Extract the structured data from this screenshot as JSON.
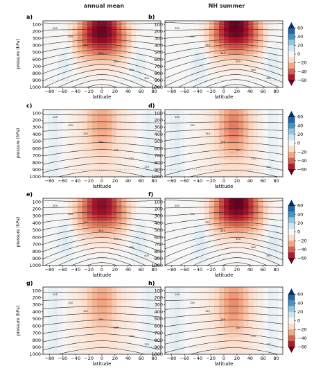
{
  "figure": {
    "column_titles": [
      "annual mean",
      "NH summer"
    ]
  },
  "colorbar": {
    "ticks": [
      60,
      40,
      20,
      0,
      -20,
      -40,
      -60
    ],
    "colors_top_to_bottom": [
      "#053061",
      "#2166ac",
      "#4393c3",
      "#92c5de",
      "#d1e5f0",
      "#f7f7f7",
      "#fddbc7",
      "#f4a582",
      "#d6604d",
      "#b2182b",
      "#67001f"
    ]
  },
  "chart_data": [
    {
      "type": "heatmap",
      "panel_label": "a)",
      "xlabel": "latitude",
      "ylabel": "pressure (hPa)",
      "x_ticks": [
        -80,
        -60,
        -40,
        -20,
        0,
        20,
        40,
        60,
        80
      ],
      "y_ticks": [
        100,
        200,
        300,
        400,
        500,
        600,
        700,
        800,
        900,
        1000
      ],
      "xlim": [
        -90,
        90
      ],
      "ylim": [
        1000,
        50
      ],
      "zlim": [
        -60,
        60
      ],
      "field": {
        "kind": "jet",
        "amplitude": -60,
        "center_lat": 0,
        "peak_pressure": 200
      },
      "contour_labels": [
        "300",
        "320",
        "340",
        "350",
        "360",
        "380",
        "400"
      ]
    },
    {
      "type": "heatmap",
      "panel_label": "b)",
      "xlabel": "latitude",
      "ylabel": "",
      "x_ticks": [
        -80,
        -60,
        -40,
        -20,
        0,
        20,
        40,
        60,
        80
      ],
      "y_ticks": [
        100,
        200,
        300,
        400,
        500,
        600,
        700,
        800,
        900,
        1000
      ],
      "xlim": [
        -90,
        90
      ],
      "ylim": [
        1000,
        50
      ],
      "zlim": [
        -60,
        60
      ],
      "field": {
        "kind": "jet",
        "amplitude": -62,
        "center_lat": 18,
        "peak_pressure": 150
      },
      "contour_labels": [
        "300",
        "320",
        "330",
        "340",
        "350",
        "360",
        "380"
      ]
    },
    {
      "type": "heatmap",
      "panel_label": "c)",
      "xlabel": "latitude",
      "ylabel": "pressure (hPa)",
      "x_ticks": [
        -80,
        -60,
        -40,
        -20,
        0,
        20,
        40,
        60,
        80
      ],
      "y_ticks": [
        100,
        200,
        300,
        400,
        500,
        600,
        700,
        800,
        900,
        1000
      ],
      "xlim": [
        -90,
        90
      ],
      "ylim": [
        1000,
        50
      ],
      "zlim": [
        -60,
        60
      ],
      "field": {
        "kind": "weak",
        "amplitude": -18,
        "center_lat": 0,
        "peak_pressure": 250
      },
      "contour_labels": [
        "145",
        "150",
        "155",
        "160",
        "165",
        "170",
        "175"
      ]
    },
    {
      "type": "heatmap",
      "panel_label": "d)",
      "xlabel": "latitude",
      "ylabel": "",
      "x_ticks": [
        -80,
        -60,
        -40,
        -20,
        0,
        20,
        40,
        60,
        80
      ],
      "y_ticks": [
        100,
        200,
        300,
        400,
        500,
        600,
        700,
        800,
        900,
        1000
      ],
      "xlim": [
        -90,
        90
      ],
      "ylim": [
        1000,
        50
      ],
      "zlim": [
        -60,
        60
      ],
      "field": {
        "kind": "weak",
        "amplitude": -25,
        "center_lat": 15,
        "peak_pressure": 300
      },
      "contour_labels": [
        "145",
        "150",
        "155",
        "160",
        "165",
        "170",
        "175"
      ]
    },
    {
      "type": "heatmap",
      "panel_label": "e)",
      "xlabel": "latitude",
      "ylabel": "pressure (hPa)",
      "x_ticks": [
        -80,
        -60,
        -40,
        -20,
        0,
        20,
        40,
        60,
        80
      ],
      "y_ticks": [
        100,
        200,
        300,
        400,
        500,
        600,
        700,
        800,
        900,
        1000
      ],
      "xlim": [
        -90,
        90
      ],
      "ylim": [
        1000,
        50
      ],
      "zlim": [
        -60,
        60
      ],
      "field": {
        "kind": "jet",
        "amplitude": -55,
        "center_lat": 0,
        "peak_pressure": 150
      },
      "contour_labels": [
        "300",
        "320",
        "340",
        "350",
        "360",
        "380",
        "400"
      ]
    },
    {
      "type": "heatmap",
      "panel_label": "f)",
      "xlabel": "latitude",
      "ylabel": "",
      "x_ticks": [
        -80,
        -60,
        -40,
        -20,
        0,
        20,
        40,
        60,
        80
      ],
      "y_ticks": [
        100,
        200,
        300,
        400,
        500,
        600,
        700,
        800,
        900,
        1000
      ],
      "xlim": [
        -90,
        90
      ],
      "ylim": [
        1000,
        50
      ],
      "zlim": [
        -60,
        60
      ],
      "field": {
        "kind": "jet",
        "amplitude": -62,
        "center_lat": 20,
        "peak_pressure": 130
      },
      "contour_labels": [
        "300",
        "320",
        "330",
        "340",
        "350",
        "360",
        "380"
      ]
    },
    {
      "type": "heatmap",
      "panel_label": "g)",
      "xlabel": "latitude",
      "ylabel": "pressure (hPa)",
      "x_ticks": [
        -80,
        -60,
        -40,
        -20,
        0,
        20,
        40,
        60,
        80
      ],
      "y_ticks": [
        100,
        200,
        300,
        400,
        500,
        600,
        700,
        800,
        900,
        1000
      ],
      "xlim": [
        -90,
        90
      ],
      "ylim": [
        1000,
        50
      ],
      "zlim": [
        -60,
        60
      ],
      "field": {
        "kind": "weak",
        "amplitude": -18,
        "center_lat": 0,
        "peak_pressure": 250
      },
      "contour_labels": [
        "145",
        "150",
        "155",
        "160",
        "165",
        "170",
        "175"
      ]
    },
    {
      "type": "heatmap",
      "panel_label": "h)",
      "xlabel": "latitude",
      "ylabel": "",
      "x_ticks": [
        -80,
        -60,
        -40,
        -20,
        0,
        20,
        40,
        60,
        80
      ],
      "y_ticks": [
        100,
        200,
        300,
        400,
        500,
        600,
        700,
        800,
        900,
        1000
      ],
      "xlim": [
        -90,
        90
      ],
      "ylim": [
        1000,
        50
      ],
      "zlim": [
        -60,
        60
      ],
      "field": {
        "kind": "weak",
        "amplitude": -22,
        "center_lat": 15,
        "peak_pressure": 300
      },
      "contour_labels": [
        "145",
        "150",
        "155",
        "160",
        "165",
        "170",
        "175"
      ]
    }
  ]
}
